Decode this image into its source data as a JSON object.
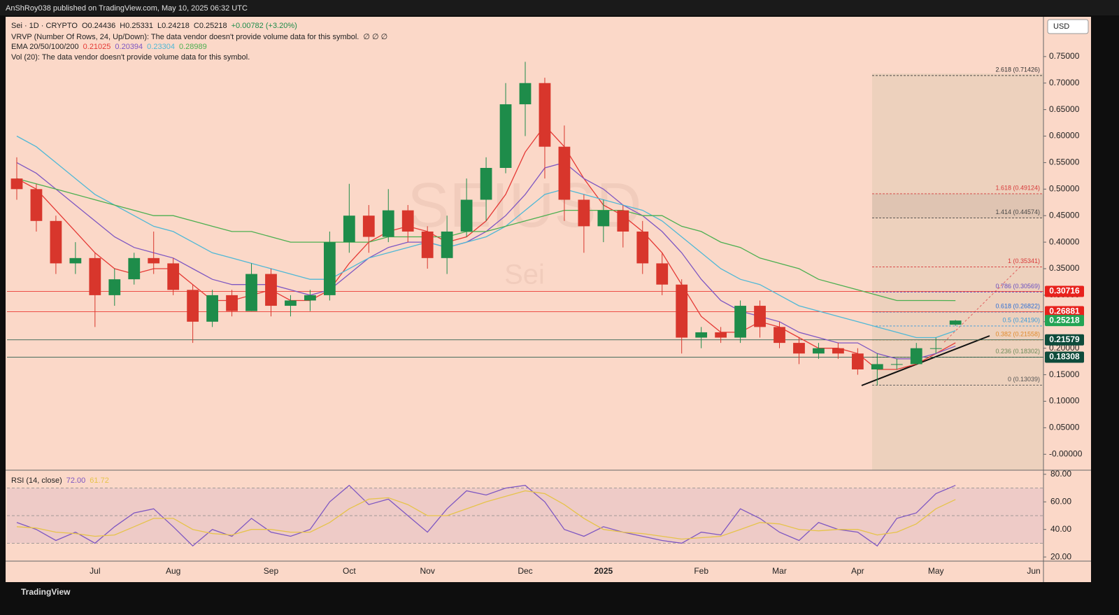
{
  "header": {
    "publisher": "AnShRoy038 published on TradingView.com, May 10, 2025 06:32 UTC"
  },
  "legend": {
    "symbol": "Sei · 1D · CRYPTO",
    "ohlc": [
      "O0.24436",
      "H0.25331",
      "L0.24218",
      "C0.25218",
      "+0.00782 (+3.20%)"
    ],
    "vrvp": "VRVP (Number Of Rows, 24, Up/Down): The data vendor doesn't provide volume data for this symbol.",
    "vrvp_values": "∅ ∅ ∅",
    "ema": "EMA 20/50/100/200",
    "vol": "Vol (20): The data vendor doesn't provide volume data for this symbol.",
    "rsi": "RSI (14, close)",
    "rsi_values": [
      {
        "text": "72.00",
        "color": "#7e57c2"
      },
      {
        "text": "61.72",
        "color": "#e6c34a"
      }
    ]
  },
  "watermark": {
    "ticker": "SEIUSD",
    "name": "Sei"
  },
  "currency": "USD",
  "footer": "TradingView",
  "chart_data": [
    {
      "type": "candlestick",
      "categories": [
        null,
        null,
        null,
        null,
        "Jul",
        null,
        null,
        null,
        "Aug",
        null,
        null,
        null,
        null,
        "Sep",
        null,
        null,
        null,
        "Oct",
        null,
        null,
        null,
        "Nov",
        null,
        null,
        null,
        null,
        "Dec",
        null,
        null,
        null,
        "2025",
        null,
        null,
        null,
        null,
        "Feb",
        null,
        null,
        null,
        "Mar",
        null,
        null,
        null,
        "Apr",
        null,
        null,
        null,
        "May",
        null,
        null,
        null,
        null,
        "Jun"
      ],
      "open": [
        0.52,
        0.5,
        0.44,
        0.36,
        0.37,
        0.3,
        0.33,
        0.37,
        0.36,
        0.31,
        0.25,
        0.3,
        0.27,
        0.34,
        0.28,
        0.29,
        0.3,
        0.4,
        0.45,
        0.41,
        0.46,
        0.42,
        0.37,
        0.42,
        0.48,
        0.54,
        0.66,
        0.7,
        0.58,
        0.48,
        0.43,
        0.46,
        0.42,
        0.36,
        0.32,
        0.22,
        0.23,
        0.22,
        0.28,
        0.24,
        0.21,
        0.19,
        0.2,
        0.19,
        0.16,
        0.17,
        0.17,
        0.2,
        0.24436,
        null,
        null,
        null,
        null
      ],
      "high": [
        0.56,
        0.51,
        0.45,
        0.4,
        0.38,
        0.35,
        0.38,
        0.42,
        0.37,
        0.32,
        0.31,
        0.31,
        0.36,
        0.35,
        0.3,
        0.31,
        0.42,
        0.51,
        0.47,
        0.5,
        0.47,
        0.43,
        0.45,
        0.52,
        0.56,
        0.7,
        0.74,
        0.71,
        0.62,
        0.49,
        0.48,
        0.47,
        0.44,
        0.38,
        0.33,
        0.24,
        0.24,
        0.29,
        0.29,
        0.25,
        0.22,
        0.21,
        0.21,
        0.2,
        0.19,
        0.18,
        0.21,
        0.22,
        0.25331,
        null,
        null,
        null,
        null
      ],
      "low": [
        0.48,
        0.42,
        0.34,
        0.34,
        0.24,
        0.28,
        0.32,
        0.34,
        0.3,
        0.21,
        0.24,
        0.26,
        0.27,
        0.26,
        0.26,
        0.27,
        0.29,
        0.38,
        0.38,
        0.4,
        0.4,
        0.35,
        0.34,
        0.41,
        0.44,
        0.53,
        0.6,
        0.52,
        0.44,
        0.38,
        0.4,
        0.39,
        0.34,
        0.3,
        0.19,
        0.2,
        0.21,
        0.21,
        0.22,
        0.2,
        0.17,
        0.18,
        0.18,
        0.15,
        0.13,
        0.16,
        0.17,
        0.19,
        0.24218,
        null,
        null,
        null,
        null
      ],
      "close": [
        0.5,
        0.44,
        0.36,
        0.37,
        0.3,
        0.33,
        0.37,
        0.36,
        0.31,
        0.25,
        0.3,
        0.27,
        0.34,
        0.28,
        0.29,
        0.3,
        0.4,
        0.45,
        0.41,
        0.46,
        0.42,
        0.37,
        0.42,
        0.48,
        0.54,
        0.66,
        0.7,
        0.58,
        0.48,
        0.43,
        0.46,
        0.42,
        0.36,
        0.32,
        0.22,
        0.23,
        0.22,
        0.28,
        0.24,
        0.21,
        0.19,
        0.2,
        0.19,
        0.16,
        0.17,
        0.17,
        0.2,
        0.2,
        0.25218,
        null,
        null,
        null,
        null
      ],
      "up_color": "#1e8c4a",
      "down_color": "#d8362c",
      "series": [
        {
          "color": "#e53935",
          "values": [
            0.52,
            0.5,
            0.46,
            0.42,
            0.38,
            0.35,
            0.34,
            0.35,
            0.35,
            0.32,
            0.29,
            0.29,
            0.3,
            0.31,
            0.29,
            0.29,
            0.31,
            0.36,
            0.4,
            0.42,
            0.43,
            0.42,
            0.4,
            0.41,
            0.44,
            0.49,
            0.57,
            0.62,
            0.58,
            0.52,
            0.47,
            0.45,
            0.42,
            0.38,
            0.32,
            0.26,
            0.23,
            0.23,
            0.25,
            0.24,
            0.22,
            0.2,
            0.2,
            0.19,
            0.16,
            0.16,
            0.17,
            0.19,
            0.21025,
            null,
            null,
            null,
            null
          ]
        },
        {
          "color": "#7e57c2",
          "values": [
            0.55,
            0.53,
            0.5,
            0.47,
            0.44,
            0.41,
            0.39,
            0.38,
            0.37,
            0.35,
            0.33,
            0.32,
            0.32,
            0.32,
            0.31,
            0.3,
            0.31,
            0.34,
            0.37,
            0.39,
            0.4,
            0.4,
            0.39,
            0.4,
            0.42,
            0.45,
            0.49,
            0.54,
            0.55,
            0.52,
            0.5,
            0.47,
            0.45,
            0.42,
            0.38,
            0.33,
            0.29,
            0.27,
            0.26,
            0.25,
            0.23,
            0.22,
            0.21,
            0.21,
            0.19,
            0.18,
            0.18,
            0.19,
            0.20394,
            null,
            null,
            null,
            null
          ]
        },
        {
          "color": "#4fb8d6",
          "values": [
            0.6,
            0.58,
            0.55,
            0.52,
            0.49,
            0.47,
            0.45,
            0.43,
            0.42,
            0.4,
            0.38,
            0.37,
            0.36,
            0.35,
            0.34,
            0.33,
            0.33,
            0.35,
            0.37,
            0.38,
            0.39,
            0.4,
            0.39,
            0.4,
            0.41,
            0.43,
            0.46,
            0.49,
            0.5,
            0.49,
            0.48,
            0.47,
            0.46,
            0.44,
            0.41,
            0.38,
            0.35,
            0.33,
            0.32,
            0.3,
            0.28,
            0.27,
            0.26,
            0.25,
            0.24,
            0.23,
            0.22,
            0.22,
            0.23304,
            null,
            null,
            null,
            null
          ]
        },
        {
          "color": "#4caf50",
          "values": [
            0.52,
            0.51,
            0.5,
            0.49,
            0.48,
            0.47,
            0.46,
            0.45,
            0.45,
            0.44,
            0.43,
            0.42,
            0.42,
            0.41,
            0.4,
            0.4,
            0.4,
            0.4,
            0.4,
            0.41,
            0.41,
            0.41,
            0.41,
            0.42,
            0.42,
            0.43,
            0.44,
            0.45,
            0.46,
            0.46,
            0.46,
            0.46,
            0.45,
            0.45,
            0.43,
            0.42,
            0.4,
            0.39,
            0.37,
            0.36,
            0.35,
            0.33,
            0.32,
            0.31,
            0.3,
            0.29,
            0.29,
            0.29,
            0.28989,
            null,
            null,
            null,
            null
          ]
        }
      ],
      "ylim": [
        -0.03,
        0.825
      ],
      "yticks": [
        {
          "value": 0,
          "label": "-0.00000"
        },
        {
          "value": 0.05,
          "label": "0.05000"
        },
        {
          "value": 0.1,
          "label": "0.10000"
        },
        {
          "value": 0.15,
          "label": "0.15000"
        },
        {
          "value": 0.2,
          "label": "0.20000"
        },
        {
          "value": 0.25,
          "label": "0.25000"
        },
        {
          "value": 0.3,
          "label": "0.30000"
        },
        {
          "value": 0.35,
          "label": "0.35000"
        },
        {
          "value": 0.4,
          "label": "0.40000"
        },
        {
          "value": 0.45,
          "label": "0.45000"
        },
        {
          "value": 0.5,
          "label": "0.50000"
        },
        {
          "value": 0.55,
          "label": "0.55000"
        },
        {
          "value": 0.6,
          "label": "0.60000"
        },
        {
          "value": 0.65,
          "label": "0.65000"
        },
        {
          "value": 0.7,
          "label": "0.70000"
        },
        {
          "value": 0.75,
          "label": "0.75000"
        }
      ],
      "price_lines": [
        {
          "value": 0.30716,
          "color": "#e8211c"
        },
        {
          "value": 0.26881,
          "color": "#e8211c"
        },
        {
          "value": 0.21579,
          "color": "#0e4b3b"
        },
        {
          "value": 0.18308,
          "color": "#0e4b3b"
        }
      ],
      "last_price": {
        "value": 0.25218,
        "color": "#23a455"
      },
      "fib_levels": [
        {
          "label": "0 (0.13039)",
          "value": 0.13039,
          "color": "#555555"
        },
        {
          "label": "0.236 (0.18302)",
          "value": 0.18302,
          "color": "#6d8b5a"
        },
        {
          "label": "0.382 (0.21558)",
          "value": 0.21558,
          "color": "#e08a2c"
        },
        {
          "label": "0.5 (0.24190)",
          "value": 0.2419,
          "color": "#3a9ad9"
        },
        {
          "label": "0.618 (0.26822)",
          "value": 0.26822,
          "color": "#2f6fd6"
        },
        {
          "label": "0.786 (0.30569)",
          "value": 0.30569,
          "color": "#6a4fc2"
        },
        {
          "label": "1 (0.35341)",
          "value": 0.35341,
          "color": "#d83a3a"
        },
        {
          "label": "1.414 (0.44574)",
          "value": 0.44574,
          "color": "#444444"
        },
        {
          "label": "1.618 (0.49124)",
          "value": 0.49124,
          "color": "#d83a3a"
        },
        {
          "label": "2.618 (0.71426)",
          "value": 0.71426,
          "color": "#333333"
        }
      ]
    },
    {
      "type": "line",
      "series": [
        {
          "color": "#7e57c2",
          "values": [
            45,
            40,
            32,
            38,
            30,
            42,
            52,
            55,
            42,
            28,
            40,
            35,
            48,
            38,
            35,
            40,
            60,
            72,
            58,
            62,
            50,
            38,
            55,
            68,
            65,
            70,
            72,
            60,
            40,
            35,
            42,
            38,
            35,
            32,
            30,
            38,
            36,
            55,
            48,
            38,
            32,
            45,
            40,
            38,
            28,
            48,
            52,
            66,
            72,
            null,
            null,
            null,
            null
          ]
        },
        {
          "color": "#e6c34a",
          "values": [
            42,
            41,
            38,
            37,
            35,
            36,
            42,
            48,
            48,
            40,
            37,
            36,
            40,
            40,
            38,
            38,
            45,
            55,
            62,
            63,
            58,
            50,
            50,
            55,
            60,
            64,
            68,
            66,
            58,
            48,
            40,
            38,
            37,
            35,
            33,
            34,
            35,
            40,
            45,
            44,
            40,
            39,
            40,
            40,
            36,
            38,
            44,
            55,
            61.72,
            null,
            null,
            null,
            null
          ]
        }
      ],
      "band_lines": [
        70,
        50,
        30
      ],
      "ylim": [
        17,
        83
      ],
      "yticks": [
        {
          "value": 20,
          "label": "20.00"
        },
        {
          "value": 40,
          "label": "40.00"
        },
        {
          "value": 60,
          "label": "60.00"
        },
        {
          "value": 80,
          "label": "80.00"
        }
      ]
    }
  ]
}
